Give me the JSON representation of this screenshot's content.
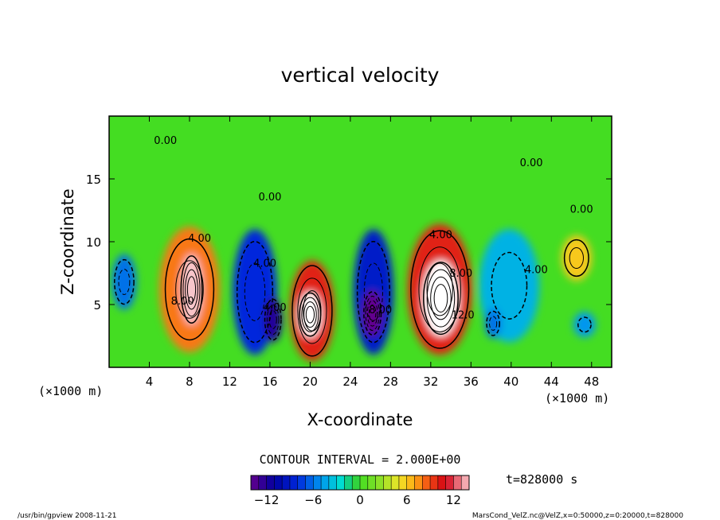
{
  "chart_data": {
    "type": "heatmap",
    "title": "vertical velocity",
    "xlabel": "X-coordinate",
    "ylabel": "Z-coordinate",
    "x_unit_label": "(×1000 m)",
    "y_unit_label": "(×1000 m)",
    "xlim": [
      0,
      50
    ],
    "ylim": [
      0,
      20
    ],
    "x_ticks": [
      4,
      8,
      12,
      16,
      20,
      24,
      28,
      32,
      36,
      40,
      44,
      48
    ],
    "y_ticks": [
      5,
      10,
      15
    ],
    "contour_interval_text": "CONTOUR INTERVAL = 2.000E+00",
    "contour_interval": 2.0,
    "time_label": "t=828000 s",
    "colorbar": {
      "min": -14,
      "max": 14,
      "ticks": [
        -12,
        -6,
        0,
        6,
        12
      ]
    },
    "contour_labels": [
      {
        "text": "4.00",
        "x": 9.0,
        "y": 10.0
      },
      {
        "text": "8.00",
        "x": 7.3,
        "y": 5.0
      },
      {
        "text": "4.00",
        "x": 15.5,
        "y": 8.0
      },
      {
        "text": "4.00",
        "x": 16.5,
        "y": 4.5
      },
      {
        "text": "8.00",
        "x": 27.0,
        "y": 4.3
      },
      {
        "text": "4.00",
        "x": 33.0,
        "y": 10.3
      },
      {
        "text": "8.00",
        "x": 35.0,
        "y": 7.2
      },
      {
        "text": "12.0",
        "x": 35.2,
        "y": 3.9
      },
      {
        "text": "4.00",
        "x": 42.5,
        "y": 7.5
      },
      {
        "text": "0.00",
        "x": 5.6,
        "y": 17.8
      },
      {
        "text": "0.00",
        "x": 16.0,
        "y": 13.3
      },
      {
        "text": "0.00",
        "x": 42.0,
        "y": 16.0
      },
      {
        "text": "0.00",
        "x": 47.0,
        "y": 12.3
      }
    ],
    "cells": [
      {
        "x": 1.5,
        "y": 6.8,
        "value": -6,
        "rx": 1.2,
        "ry": 2.2
      },
      {
        "x": 8.0,
        "y": 6.2,
        "value": 8,
        "rx": 3.0,
        "ry": 5.0
      },
      {
        "x": 8.2,
        "y": 6.2,
        "value": 14,
        "rx": 1.1,
        "ry": 2.8
      },
      {
        "x": 14.5,
        "y": 6.0,
        "value": -8,
        "rx": 2.2,
        "ry": 5.0
      },
      {
        "x": 16.3,
        "y": 3.8,
        "value": -12,
        "rx": 0.9,
        "ry": 1.8
      },
      {
        "x": 20.2,
        "y": 4.5,
        "value": 10,
        "rx": 2.2,
        "ry": 4.0
      },
      {
        "x": 20.0,
        "y": 4.2,
        "value": 15,
        "rx": 1.1,
        "ry": 1.8
      },
      {
        "x": 26.3,
        "y": 6.0,
        "value": -9,
        "rx": 2.0,
        "ry": 5.0
      },
      {
        "x": 26.2,
        "y": 4.3,
        "value": -14,
        "rx": 0.9,
        "ry": 1.8
      },
      {
        "x": 32.9,
        "y": 6.2,
        "value": 10,
        "rx": 3.2,
        "ry": 5.2
      },
      {
        "x": 33.0,
        "y": 5.5,
        "value": 15,
        "rx": 1.8,
        "ry": 3.0
      },
      {
        "x": 39.8,
        "y": 6.5,
        "value": -4,
        "rx": 3.0,
        "ry": 4.5
      },
      {
        "x": 38.2,
        "y": 3.5,
        "value": -6,
        "rx": 0.8,
        "ry": 1.2
      },
      {
        "x": 46.5,
        "y": 8.7,
        "value": 6,
        "rx": 1.5,
        "ry": 1.8
      },
      {
        "x": 47.3,
        "y": 3.4,
        "value": -5,
        "rx": 1.1,
        "ry": 1.0
      }
    ]
  },
  "footer": {
    "left": "/usr/bin/gpview   2008-11-21",
    "right": "MarsCond_VelZ.nc@VelZ,x=0:50000,z=0:20000,t=828000"
  },
  "colors": {
    "background_field": "#44dd22",
    "frame": "#000000"
  }
}
